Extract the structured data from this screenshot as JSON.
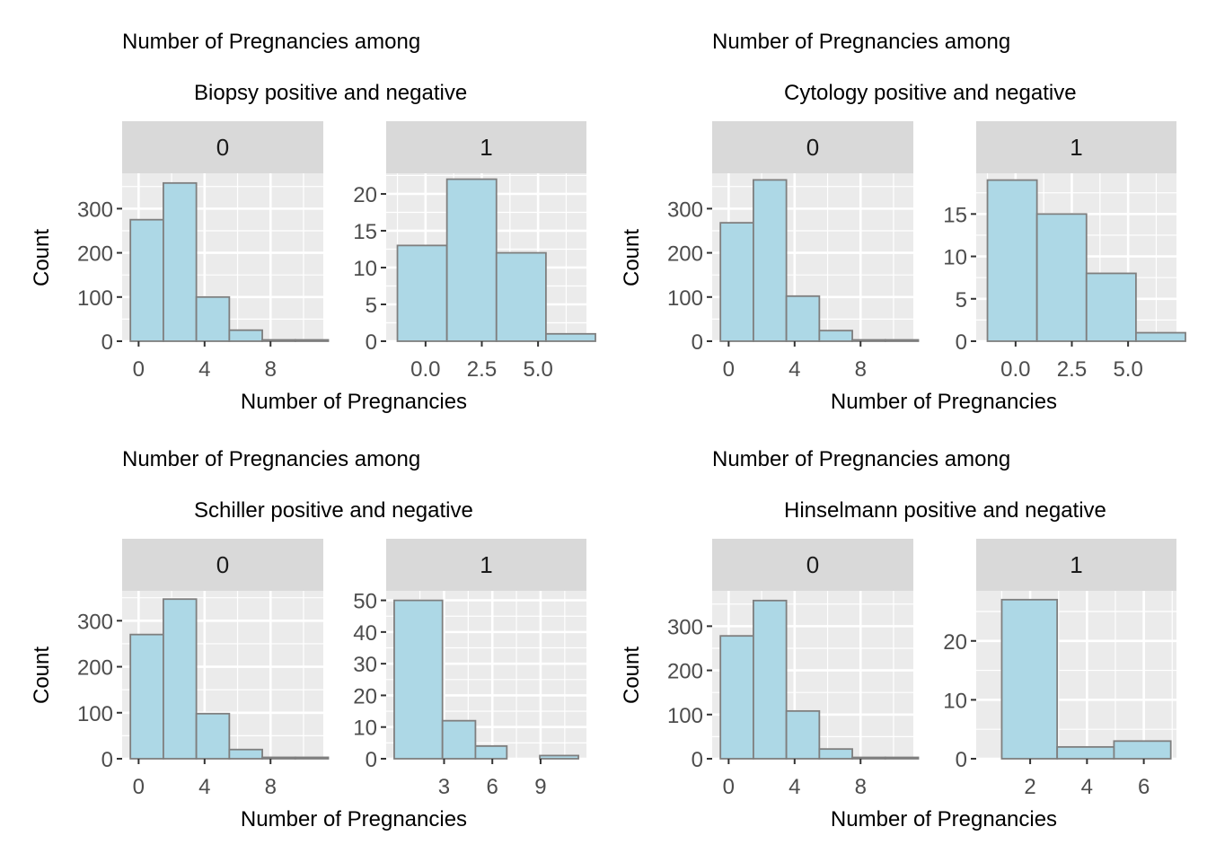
{
  "colors": {
    "panel_bg": "#ebebeb",
    "strip_bg": "#d9d9d9",
    "grid_major": "#ffffff",
    "bar_fill": "#add8e6",
    "bar_stroke": "#7f7f7f",
    "tick": "#333333"
  },
  "chart_data": [
    {
      "type": "bar",
      "title_line1": "Number of Pregnancies among",
      "title_line2": "Biopsy positive and negative",
      "xlabel": "Number of Pregnancies",
      "ylabel": "Count",
      "grid": true,
      "facets": [
        {
          "strip": "0",
          "xlim": [
            -1,
            11.2
          ],
          "ylim": [
            0,
            380
          ],
          "xticks": [
            0,
            4,
            8
          ],
          "xtick_labels": [
            "0",
            "4",
            "8"
          ],
          "yticks": [
            0,
            100,
            200,
            300
          ],
          "ytick_labels": [
            "0",
            "100",
            "200",
            "300"
          ],
          "bins": [
            {
              "x0": -0.5,
              "x1": 1.5,
              "count": 275
            },
            {
              "x0": 1.5,
              "x1": 3.5,
              "count": 358
            },
            {
              "x0": 3.5,
              "x1": 5.5,
              "count": 100
            },
            {
              "x0": 5.5,
              "x1": 7.5,
              "count": 25
            },
            {
              "x0": 7.5,
              "x1": 9.5,
              "count": 3
            },
            {
              "x0": 9.5,
              "x1": 11.5,
              "count": 3
            }
          ]
        },
        {
          "strip": "1",
          "xlim": [
            -1.75,
            7.15
          ],
          "ylim": [
            0,
            22.8
          ],
          "xticks": [
            0,
            2.5,
            5
          ],
          "xtick_labels": [
            "0.0",
            "2.5",
            "5.0"
          ],
          "yticks": [
            0,
            5,
            10,
            15,
            20
          ],
          "ytick_labels": [
            "0",
            "5",
            "10",
            "15",
            "20"
          ],
          "bins": [
            {
              "x0": -1.25,
              "x1": 0.95,
              "count": 13
            },
            {
              "x0": 0.95,
              "x1": 3.15,
              "count": 22
            },
            {
              "x0": 3.15,
              "x1": 5.35,
              "count": 12
            },
            {
              "x0": 5.35,
              "x1": 7.55,
              "count": 1
            }
          ]
        }
      ]
    },
    {
      "type": "bar",
      "title_line1": "Number of Pregnancies among",
      "title_line2": "Cytology positive and negative",
      "xlabel": "Number of Pregnancies",
      "ylabel": "Count",
      "grid": true,
      "facets": [
        {
          "strip": "0",
          "xlim": [
            -1,
            11.2
          ],
          "ylim": [
            0,
            380
          ],
          "xticks": [
            0,
            4,
            8
          ],
          "xtick_labels": [
            "0",
            "4",
            "8"
          ],
          "yticks": [
            0,
            100,
            200,
            300
          ],
          "ytick_labels": [
            "0",
            "100",
            "200",
            "300"
          ],
          "bins": [
            {
              "x0": -0.5,
              "x1": 1.5,
              "count": 268
            },
            {
              "x0": 1.5,
              "x1": 3.5,
              "count": 365
            },
            {
              "x0": 3.5,
              "x1": 5.5,
              "count": 102
            },
            {
              "x0": 5.5,
              "x1": 7.5,
              "count": 24
            },
            {
              "x0": 7.5,
              "x1": 9.5,
              "count": 3
            },
            {
              "x0": 9.5,
              "x1": 11.5,
              "count": 3
            }
          ]
        },
        {
          "strip": "1",
          "xlim": [
            -1.75,
            7.15
          ],
          "ylim": [
            0,
            19.8
          ],
          "xticks": [
            0,
            2.5,
            5
          ],
          "xtick_labels": [
            "0.0",
            "2.5",
            "5.0"
          ],
          "yticks": [
            0,
            5,
            10,
            15
          ],
          "ytick_labels": [
            "0",
            "5",
            "10",
            "15"
          ],
          "bins": [
            {
              "x0": -1.25,
              "x1": 0.95,
              "count": 19
            },
            {
              "x0": 0.95,
              "x1": 3.15,
              "count": 15
            },
            {
              "x0": 3.15,
              "x1": 5.35,
              "count": 8
            },
            {
              "x0": 5.35,
              "x1": 7.55,
              "count": 1
            }
          ]
        }
      ]
    },
    {
      "type": "bar",
      "title_line1": "Number of Pregnancies among",
      "title_line2": "Schiller positive and negative",
      "xlabel": "Number of Pregnancies",
      "ylabel": "Count",
      "grid": true,
      "facets": [
        {
          "strip": "0",
          "xlim": [
            -1,
            11.2
          ],
          "ylim": [
            0,
            365
          ],
          "xticks": [
            0,
            4,
            8
          ],
          "xtick_labels": [
            "0",
            "4",
            "8"
          ],
          "yticks": [
            0,
            100,
            200,
            300
          ],
          "ytick_labels": [
            "0",
            "100",
            "200",
            "300"
          ],
          "bins": [
            {
              "x0": -0.5,
              "x1": 1.5,
              "count": 270
            },
            {
              "x0": 1.5,
              "x1": 3.5,
              "count": 347
            },
            {
              "x0": 3.5,
              "x1": 5.5,
              "count": 98
            },
            {
              "x0": 5.5,
              "x1": 7.5,
              "count": 20
            },
            {
              "x0": 7.5,
              "x1": 9.5,
              "count": 3
            },
            {
              "x0": 9.5,
              "x1": 11.5,
              "count": 3
            }
          ]
        },
        {
          "strip": "1",
          "xlim": [
            -0.6,
            11.85
          ],
          "ylim": [
            0,
            53
          ],
          "xticks": [
            3,
            6,
            9
          ],
          "xtick_labels": [
            "3",
            "6",
            "9"
          ],
          "yticks": [
            0,
            10,
            20,
            30,
            40,
            50
          ],
          "ytick_labels": [
            "0",
            "10",
            "20",
            "30",
            "40",
            "50"
          ],
          "bins": [
            {
              "x0": -0.1,
              "x1": 2.9,
              "count": 50
            },
            {
              "x0": 2.9,
              "x1": 4.95,
              "count": 12
            },
            {
              "x0": 4.95,
              "x1": 6.9,
              "count": 4
            },
            {
              "x0": 6.9,
              "x1": 8.95,
              "count": 0
            },
            {
              "x0": 8.95,
              "x1": 11.35,
              "count": 1
            }
          ]
        }
      ]
    },
    {
      "type": "bar",
      "title_line1": "Number of Pregnancies among",
      "title_line2": "Hinselmann positive and negative",
      "xlabel": "Number of Pregnancies",
      "ylabel": "Count",
      "grid": true,
      "facets": [
        {
          "strip": "0",
          "xlim": [
            -1,
            11.2
          ],
          "ylim": [
            0,
            380
          ],
          "xticks": [
            0,
            4,
            8
          ],
          "xtick_labels": [
            "0",
            "4",
            "8"
          ],
          "yticks": [
            0,
            100,
            200,
            300
          ],
          "ytick_labels": [
            "0",
            "100",
            "200",
            "300"
          ],
          "bins": [
            {
              "x0": -0.5,
              "x1": 1.5,
              "count": 278
            },
            {
              "x0": 1.5,
              "x1": 3.5,
              "count": 358
            },
            {
              "x0": 3.5,
              "x1": 5.5,
              "count": 108
            },
            {
              "x0": 5.5,
              "x1": 7.5,
              "count": 22
            },
            {
              "x0": 7.5,
              "x1": 9.5,
              "count": 3
            },
            {
              "x0": 9.5,
              "x1": 11.5,
              "count": 3
            }
          ]
        },
        {
          "strip": "1",
          "xlim": [
            0.1,
            7.15
          ],
          "ylim": [
            0,
            28.5
          ],
          "xticks": [
            2,
            4,
            6
          ],
          "xtick_labels": [
            "2",
            "4",
            "6"
          ],
          "yticks": [
            0,
            10,
            20
          ],
          "ytick_labels": [
            "0",
            "10",
            "20"
          ],
          "bins": [
            {
              "x0": 1.0,
              "x1": 2.95,
              "count": 27
            },
            {
              "x0": 2.95,
              "x1": 4.95,
              "count": 2
            },
            {
              "x0": 4.95,
              "x1": 6.95,
              "count": 3
            }
          ]
        }
      ]
    }
  ]
}
